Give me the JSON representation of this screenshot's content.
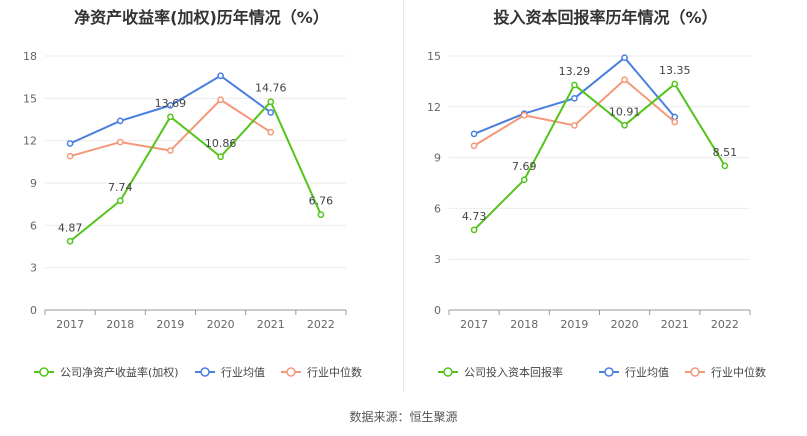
{
  "source": "数据来源：恒生聚源",
  "chart_data": [
    {
      "type": "line",
      "title": "净资产收益率(加权)历年情况（%）",
      "categories": [
        "2017",
        "2018",
        "2019",
        "2020",
        "2021",
        "2022"
      ],
      "ylim": [
        0,
        18
      ],
      "yticks": [
        "0",
        "3",
        "6",
        "9",
        "12",
        "15",
        "18"
      ],
      "grid": true,
      "legend_position": "bottom",
      "series": [
        {
          "name": "公司净资产收益率(加权)",
          "color": "#52c41a",
          "values": [
            4.87,
            7.74,
            13.69,
            10.86,
            14.76,
            6.76
          ],
          "labels": [
            "4.87",
            "7.74",
            "13.69",
            "10.86",
            "14.76",
            "6.76"
          ]
        },
        {
          "name": "行业均值",
          "color": "#4a7fe0",
          "values": [
            11.8,
            13.4,
            14.5,
            16.6,
            14.0,
            null
          ]
        },
        {
          "name": "行业中位数",
          "color": "#f4987a",
          "values": [
            10.9,
            11.9,
            11.3,
            14.9,
            12.6,
            null
          ]
        }
      ]
    },
    {
      "type": "line",
      "title": "投入资本回报率历年情况（%）",
      "categories": [
        "2017",
        "2018",
        "2019",
        "2020",
        "2021",
        "2022"
      ],
      "ylim": [
        0,
        15
      ],
      "yticks": [
        "0",
        "3",
        "6",
        "9",
        "12",
        "15"
      ],
      "grid": true,
      "legend_position": "bottom",
      "series": [
        {
          "name": "公司投入资本回报率",
          "color": "#52c41a",
          "values": [
            4.73,
            7.69,
            13.29,
            10.91,
            13.35,
            8.51
          ],
          "labels": [
            "4.73",
            "7.69",
            "13.29",
            "10.91",
            "13.35",
            "8.51"
          ]
        },
        {
          "name": "行业均值",
          "color": "#4a7fe0",
          "values": [
            10.4,
            11.6,
            12.5,
            14.9,
            11.4,
            null
          ]
        },
        {
          "name": "行业中位数",
          "color": "#f4987a",
          "values": [
            9.7,
            11.5,
            10.9,
            13.6,
            11.1,
            null
          ]
        }
      ]
    }
  ]
}
